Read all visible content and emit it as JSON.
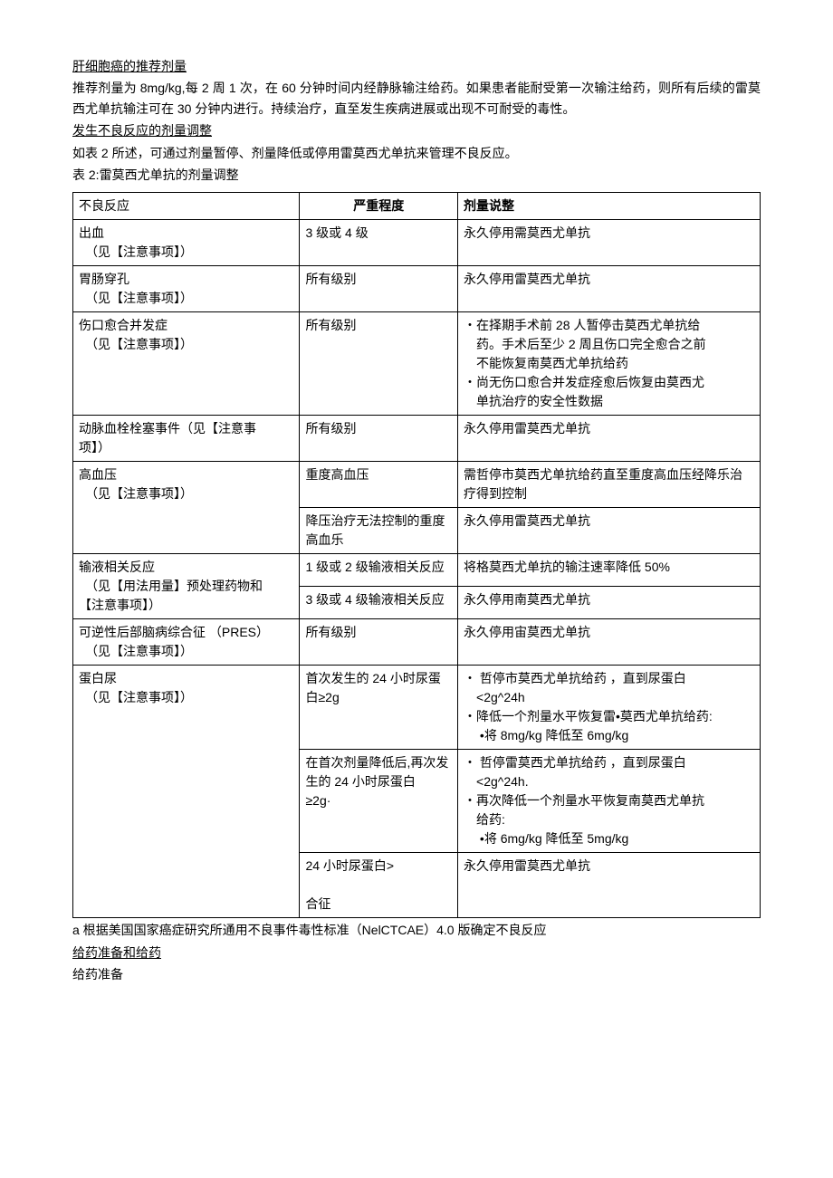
{
  "headings": {
    "h1": "肝细胞癌的推荐剂量",
    "h2": "发生不良反应的剂量调整",
    "h3": "给药准备和给药"
  },
  "paragraphs": {
    "p1": "推荐剂量为 8mg/kg,每 2 周 1 次，在 60 分钟时间内经静脉输注给药。如果患者能耐受第一次输注给药，则所有后续的雷莫西尤单抗输注可在 30 分钟内进行。持续治疗，直至发生疾病进展或出现不可耐受的毒性。",
    "p2": "如表 2 所述，可通过剂量暂停、剂量降低或停用雷莫西尤单抗来管理不良反应。",
    "pTableTitle": "表 2:雷莫西尤单抗的剂量调整",
    "pFootnote": "a 根据美国国家癌症研究所通用不良事件毒性标准（NelCTCAE）4.0 版确定不良反应",
    "p3": "给药准备"
  },
  "tableHeaders": {
    "reaction": "不良反应",
    "severity": "严重程度",
    "instruction": "剂量说整"
  },
  "rows": [
    {
      "reaction": "出血\n　（见【注意事项】）",
      "severity": "3 级或 4 级",
      "instruction": "永久停用需莫西尤单抗",
      "rowspan": 1
    },
    {
      "reaction": "胃肠穿孔\n　（见【注意事项】）",
      "severity": "所有级别",
      "instruction": "永久停用雷莫西尤单抗",
      "rowspan": 1
    },
    {
      "reaction": "伤口愈合并发症\n　（见【注意事项】）",
      "severity": "所有级别",
      "instruction": "・在择期手术前 28 人暂停击莫西尤单抗给\n　药。手术后至少 2 周且伤口完全愈合之前\n　不能恢复南莫西尤单抗给药\n・尚无伤口愈合并发症痊愈后恢复由莫西尤\n　单抗治疗的安全性数据",
      "rowspan": 1
    },
    {
      "reaction": "动脉血栓栓塞事件（见【注意事\n  项】）",
      "severity": "所有级别",
      "instruction": "永久停用雷莫西尤单抗",
      "rowspan": 1
    },
    {
      "reaction": "高血压\n　（见【注意事项】）",
      "subrows": [
        {
          "severity": "重度高血压",
          "instruction": "需哲停市莫西尤单抗给药直至重度高血压经降乐治疗得到控制"
        },
        {
          "severity": "降压治疗无法控制的重度高血乐",
          "instruction": "永久停用雷莫西尤单抗"
        }
      ],
      "rowspan": 2
    },
    {
      "reaction": "输液相关反应\n　（见【用法用量】预处理药物和\n  【注意事项】）",
      "subrows": [
        {
          "severity": "1 级或 2 级输液相关反应",
          "instruction": "将格莫西尤单抗的输注速率降低 50%"
        },
        {
          "severity": "3 级或 4 级输液相关反应",
          "instruction": "永久停用南莫西尤单抗"
        }
      ],
      "rowspan": 2
    },
    {
      "reaction": "可逆性后部脑病综合征 （PRES）\n　（见【注意事项】）",
      "severity": "所有级别",
      "instruction": "永久停用宙莫西尤单抗",
      "rowspan": 1
    },
    {
      "reaction": "蛋白尿\n　（见【注意事项】）",
      "subrows": [
        {
          "severity": "首次发生的 24 小时尿蛋白≥2g",
          "instruction": "・ 哲停市莫西尤单抗给药 ，直到尿蛋白\n　<2g^24h\n・降低一个剂量水平恢复雷•莫西尤单抗给药:\n　 •将 8mg/kg 降低至 6mg/kg"
        },
        {
          "severity": "在首次剂量降低后,再次发生的 24 小时尿蛋白\n≥2g·",
          "instruction": "・ 哲停雷莫西尤单抗给药 ，直到尿蛋白\n　<2g^24h.\n・再次降低一个剂量水平恢复南莫西尤单抗\n　给药:\n　 •将 6mg/kg 降低至 5mg/kg"
        },
        {
          "severity": "24 小时尿蛋白>\n\n合征",
          "instruction": "永久停用雷莫西尤单抗"
        }
      ],
      "rowspan": 3
    }
  ]
}
